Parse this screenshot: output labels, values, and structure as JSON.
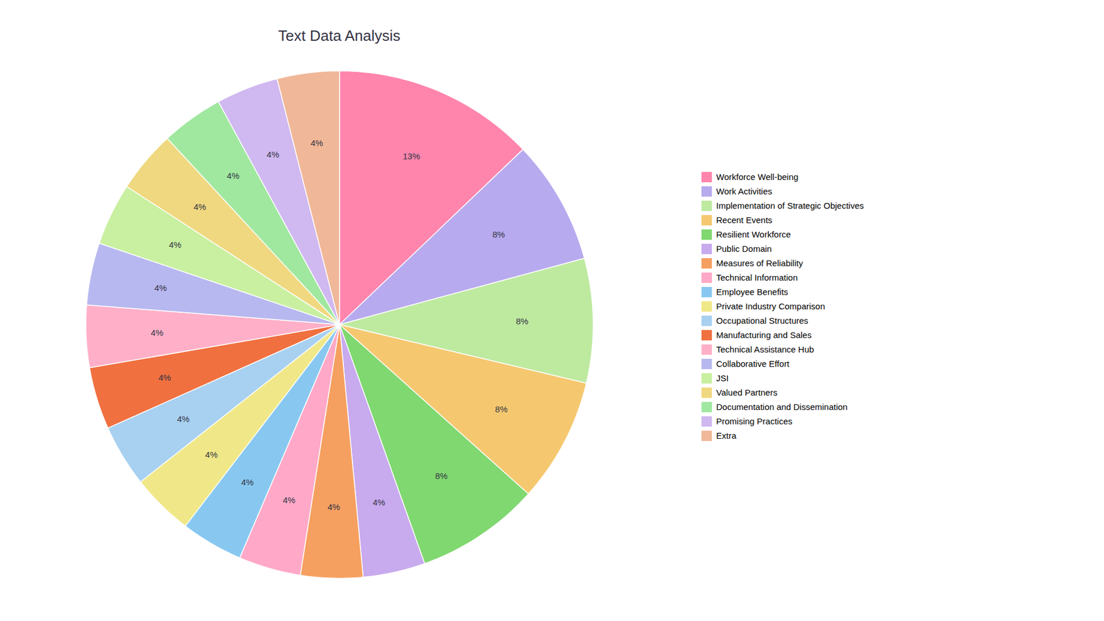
{
  "chart_data": {
    "type": "pie",
    "title": "Text Data Analysis",
    "categories": [
      "Workforce Well-being",
      "Work Activities",
      "Implementation of Strategic Objectives",
      "Recent Events",
      "Resilient Workforce",
      "Public Domain",
      "Measures of Reliability",
      "Technical Information",
      "Employee Benefits",
      "Private Industry Comparison",
      "Occupational Structures",
      "Manufacturing and Sales",
      "Technical Assistance Hub",
      "Collaborative Effort",
      "JSI",
      "Valued Partners",
      "Documentation and Dissemination",
      "Promising Practices",
      "Extra"
    ],
    "values": [
      13,
      8,
      8,
      8,
      8,
      4,
      4,
      4,
      4,
      4,
      4,
      4,
      4,
      4,
      4,
      4,
      4,
      4,
      4
    ],
    "value_labels": [
      "13%",
      "8%",
      "8%",
      "8%",
      "8%",
      "4%",
      "4%",
      "4%",
      "4%",
      "4%",
      "4%",
      "4%",
      "4%",
      "4%",
      "4%",
      "4%",
      "4%",
      "4%",
      "4%"
    ],
    "colors": [
      "#FF85AD",
      "#B8AAEE",
      "#BEEAA0",
      "#F5C870",
      "#80D870",
      "#C8AAEE",
      "#F5A060",
      "#FFA8C8",
      "#88C8F0",
      "#F0E888",
      "#A8D0F0",
      "#F07040",
      "#FFB0C8",
      "#B8B8F0",
      "#C8F0A0",
      "#F0D880",
      "#A0E8A0",
      "#D0B8F0",
      "#F0B898"
    ],
    "data_labels": true,
    "legend": "right"
  }
}
